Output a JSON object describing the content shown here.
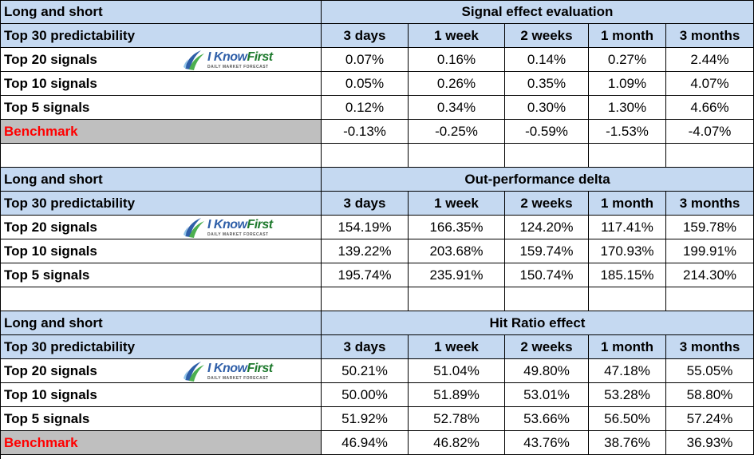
{
  "logo": {
    "name_part1": "I Know",
    "name_part2": "First",
    "tagline": "DAILY MARKET FORECAST"
  },
  "columns": [
    "3 days",
    "1 week",
    "2 weeks",
    "1 month",
    "3 months"
  ],
  "sections": [
    {
      "left_title": "Long and short",
      "title": "Signal effect evaluation",
      "subheader": "Top 30 predictability",
      "rows": [
        {
          "label": "Top 20 signals",
          "values": [
            "0.07%",
            "0.16%",
            "0.14%",
            "0.27%",
            "2.44%"
          ]
        },
        {
          "label": "Top 10 signals",
          "values": [
            "0.05%",
            "0.26%",
            "0.35%",
            "1.09%",
            "4.07%"
          ]
        },
        {
          "label": "Top 5 signals",
          "values": [
            "0.12%",
            "0.34%",
            "0.30%",
            "1.30%",
            "4.66%"
          ]
        },
        {
          "label": "Benchmark",
          "values": [
            "-0.13%",
            "-0.25%",
            "-0.59%",
            "-1.53%",
            "-4.07%"
          ]
        }
      ]
    },
    {
      "left_title": "Long and short",
      "title": "Out-performance delta",
      "subheader": "Top 30 predictability",
      "rows": [
        {
          "label": "Top 20 signals",
          "values": [
            "154.19%",
            "166.35%",
            "124.20%",
            "117.41%",
            "159.78%"
          ]
        },
        {
          "label": "Top 10 signals",
          "values": [
            "139.22%",
            "203.68%",
            "159.74%",
            "170.93%",
            "199.91%"
          ]
        },
        {
          "label": "Top 5 signals",
          "values": [
            "195.74%",
            "235.91%",
            "150.74%",
            "185.15%",
            "214.30%"
          ]
        }
      ]
    },
    {
      "left_title": "Long and short",
      "title": "Hit Ratio effect",
      "subheader": "Top 30 predictability",
      "rows": [
        {
          "label": "Top 20 signals",
          "values": [
            "50.21%",
            "51.04%",
            "49.80%",
            "47.18%",
            "55.05%"
          ]
        },
        {
          "label": "Top 10 signals",
          "values": [
            "50.00%",
            "51.89%",
            "53.01%",
            "53.28%",
            "58.80%"
          ]
        },
        {
          "label": "Top 5 signals",
          "values": [
            "51.92%",
            "52.78%",
            "53.66%",
            "56.50%",
            "57.24%"
          ]
        },
        {
          "label": "Benchmark",
          "values": [
            "46.94%",
            "46.82%",
            "43.76%",
            "38.76%",
            "36.93%"
          ]
        }
      ]
    }
  ]
}
